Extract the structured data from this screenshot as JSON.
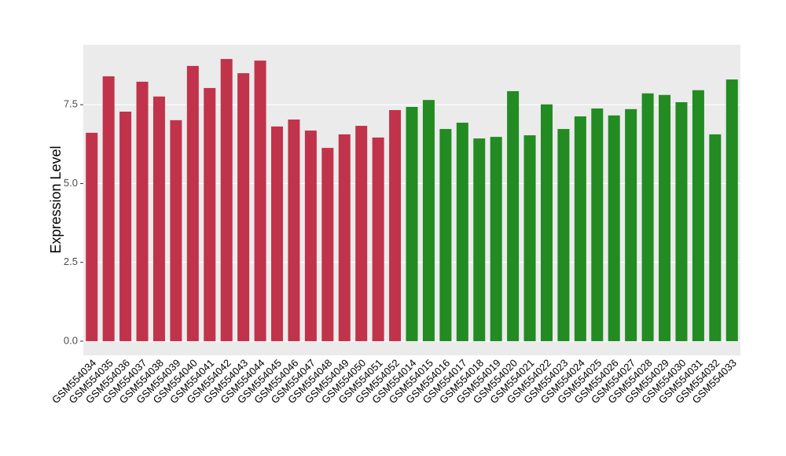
{
  "chart_data": {
    "type": "bar",
    "y_label": "Expression Level",
    "categories": [
      "GSM554034",
      "GSM554035",
      "GSM554036",
      "GSM554037",
      "GSM554038",
      "GSM554039",
      "GSM554040",
      "GSM554041",
      "GSM554042",
      "GSM554043",
      "GSM554044",
      "GSM554045",
      "GSM554046",
      "GSM554047",
      "GSM554048",
      "GSM554049",
      "GSM554050",
      "GSM554051",
      "GSM554052",
      "GSM554014",
      "GSM554015",
      "GSM554016",
      "GSM554017",
      "GSM554018",
      "GSM554019",
      "GSM554020",
      "GSM554021",
      "GSM554022",
      "GSM554023",
      "GSM554024",
      "GSM554025",
      "GSM554026",
      "GSM554027",
      "GSM554028",
      "GSM554029",
      "GSM554030",
      "GSM554031",
      "GSM554032",
      "GSM554033"
    ],
    "values": [
      6.61,
      8.4,
      7.28,
      8.23,
      7.76,
      7.01,
      8.73,
      8.03,
      8.95,
      8.5,
      8.9,
      6.81,
      7.03,
      6.68,
      6.13,
      6.56,
      6.83,
      6.46,
      7.33,
      7.43,
      7.65,
      6.73,
      6.93,
      6.43,
      6.48,
      7.93,
      6.53,
      7.51,
      6.73,
      7.13,
      7.38,
      7.16,
      7.36,
      7.86,
      7.81,
      7.58,
      7.96,
      6.56,
      8.3
    ],
    "bar_colors": [
      "#c1334a",
      "#c1334a",
      "#c1334a",
      "#c1334a",
      "#c1334a",
      "#c1334a",
      "#c1334a",
      "#c1334a",
      "#c1334a",
      "#c1334a",
      "#c1334a",
      "#c1334a",
      "#c1334a",
      "#c1334a",
      "#c1334a",
      "#c1334a",
      "#c1334a",
      "#c1334a",
      "#c1334a",
      "#228b22",
      "#228b22",
      "#228b22",
      "#228b22",
      "#228b22",
      "#228b22",
      "#228b22",
      "#228b22",
      "#228b22",
      "#228b22",
      "#228b22",
      "#228b22",
      "#228b22",
      "#228b22",
      "#228b22",
      "#228b22",
      "#228b22",
      "#228b22",
      "#228b22",
      "#228b22"
    ],
    "ylim": [
      -0.45,
      9.4
    ],
    "yticks": [
      {
        "value": 0,
        "label": "0.0"
      },
      2.5,
      {
        "value": 5,
        "label": "5.0"
      },
      7.5
    ],
    "grid": true
  }
}
